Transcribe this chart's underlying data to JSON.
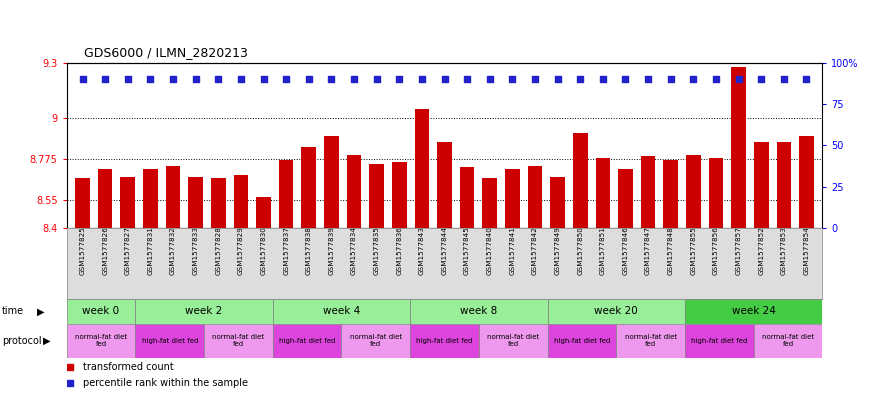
{
  "title": "GDS6000 / ILMN_2820213",
  "samples": [
    "GSM1577825",
    "GSM1577826",
    "GSM1577827",
    "GSM1577831",
    "GSM1577832",
    "GSM1577833",
    "GSM1577828",
    "GSM1577829",
    "GSM1577830",
    "GSM1577837",
    "GSM1577838",
    "GSM1577839",
    "GSM1577834",
    "GSM1577835",
    "GSM1577836",
    "GSM1577843",
    "GSM1577844",
    "GSM1577845",
    "GSM1577840",
    "GSM1577841",
    "GSM1577842",
    "GSM1577849",
    "GSM1577850",
    "GSM1577851",
    "GSM1577846",
    "GSM1577847",
    "GSM1577848",
    "GSM1577855",
    "GSM1577856",
    "GSM1577857",
    "GSM1577852",
    "GSM1577853",
    "GSM1577854"
  ],
  "red_values": [
    8.67,
    8.72,
    8.68,
    8.72,
    8.74,
    8.68,
    8.67,
    8.69,
    8.57,
    8.77,
    8.84,
    8.9,
    8.8,
    8.75,
    8.76,
    9.05,
    8.87,
    8.73,
    8.67,
    8.72,
    8.74,
    8.68,
    8.92,
    8.78,
    8.72,
    8.79,
    8.77,
    8.8,
    8.78,
    9.28,
    8.87,
    8.87,
    8.9
  ],
  "blue_values": [
    90,
    90,
    90,
    90,
    90,
    90,
    90,
    90,
    90,
    90,
    90,
    90,
    90,
    90,
    90,
    90,
    90,
    90,
    90,
    90,
    90,
    90,
    90,
    90,
    90,
    90,
    90,
    90,
    90,
    90,
    90,
    90,
    90
  ],
  "ylim_left": [
    8.4,
    9.3
  ],
  "ylim_right": [
    0,
    100
  ],
  "yticks_left": [
    8.4,
    8.55,
    8.775,
    9.0,
    9.3
  ],
  "ytick_labels_left": [
    "8.4",
    "8.55",
    "8.775",
    "9",
    "9.3"
  ],
  "yticks_right": [
    0,
    25,
    50,
    75,
    100
  ],
  "ytick_labels_right": [
    "0",
    "25",
    "50",
    "75",
    "100%"
  ],
  "bar_color": "#cc0000",
  "dot_color": "#2222cc",
  "time_groups": [
    {
      "label": "week 0",
      "start": 0,
      "end": 3
    },
    {
      "label": "week 2",
      "start": 3,
      "end": 9
    },
    {
      "label": "week 4",
      "start": 9,
      "end": 15
    },
    {
      "label": "week 8",
      "start": 15,
      "end": 21
    },
    {
      "label": "week 20",
      "start": 21,
      "end": 27
    },
    {
      "label": "week 24",
      "start": 27,
      "end": 33
    }
  ],
  "time_color_normal": "#99ee99",
  "time_color_last": "#44cc44",
  "protocol_groups": [
    {
      "label": "normal-fat diet\nfed",
      "start": 0,
      "end": 3,
      "type": "normal"
    },
    {
      "label": "high-fat diet fed",
      "start": 3,
      "end": 6,
      "type": "high"
    },
    {
      "label": "normal-fat diet\nfed",
      "start": 6,
      "end": 9,
      "type": "normal"
    },
    {
      "label": "high-fat diet fed",
      "start": 9,
      "end": 12,
      "type": "high"
    },
    {
      "label": "normal-fat diet\nfed",
      "start": 12,
      "end": 15,
      "type": "normal"
    },
    {
      "label": "high-fat diet fed",
      "start": 15,
      "end": 18,
      "type": "high"
    },
    {
      "label": "normal-fat diet\nfed",
      "start": 18,
      "end": 21,
      "type": "normal"
    },
    {
      "label": "high-fat diet fed",
      "start": 21,
      "end": 24,
      "type": "high"
    },
    {
      "label": "normal-fat diet\nfed",
      "start": 24,
      "end": 27,
      "type": "normal"
    },
    {
      "label": "high-fat diet fed",
      "start": 27,
      "end": 30,
      "type": "high"
    },
    {
      "label": "normal-fat diet\nfed",
      "start": 30,
      "end": 33,
      "type": "normal"
    }
  ],
  "proto_color_normal": "#ee99ee",
  "proto_color_high": "#dd44dd",
  "legend_items": [
    {
      "label": "transformed count",
      "color": "#cc0000"
    },
    {
      "label": "percentile rank within the sample",
      "color": "#2222cc"
    }
  ]
}
